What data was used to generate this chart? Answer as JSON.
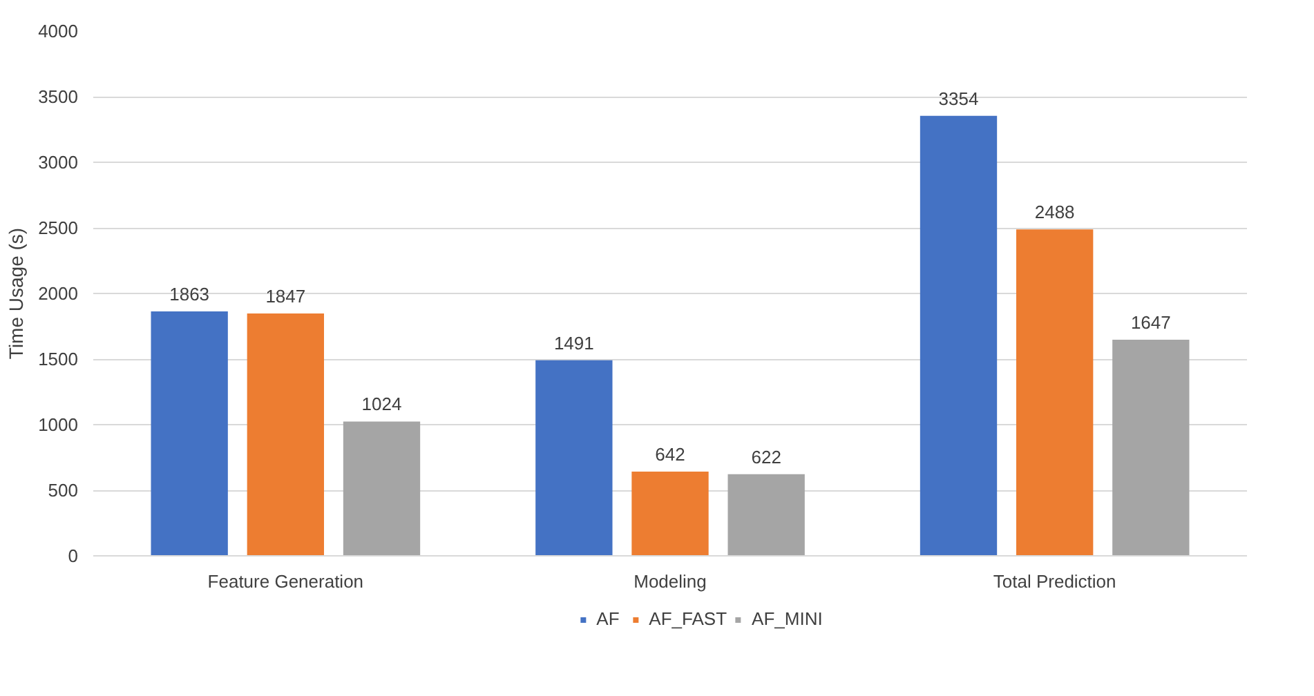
{
  "chart_data": {
    "type": "bar",
    "ylabel": "Time Usage (s)",
    "categories": [
      "Feature Generation",
      "Modeling",
      "Total Prediction"
    ],
    "series": [
      {
        "name": "AF",
        "color": "#4472c4",
        "values": [
          1863,
          1491,
          3354
        ]
      },
      {
        "name": "AF_FAST",
        "color": "#ed7d31",
        "values": [
          1847,
          642,
          2488
        ]
      },
      {
        "name": "AF_MINI",
        "color": "#a5a5a5",
        "values": [
          1024,
          622,
          1647
        ]
      }
    ],
    "ylim": [
      0,
      4000
    ],
    "yticks": [
      0,
      500,
      1000,
      1500,
      2000,
      2500,
      3000,
      3500,
      4000
    ],
    "grid": "y",
    "legend": "bottom",
    "data_labels": true
  }
}
